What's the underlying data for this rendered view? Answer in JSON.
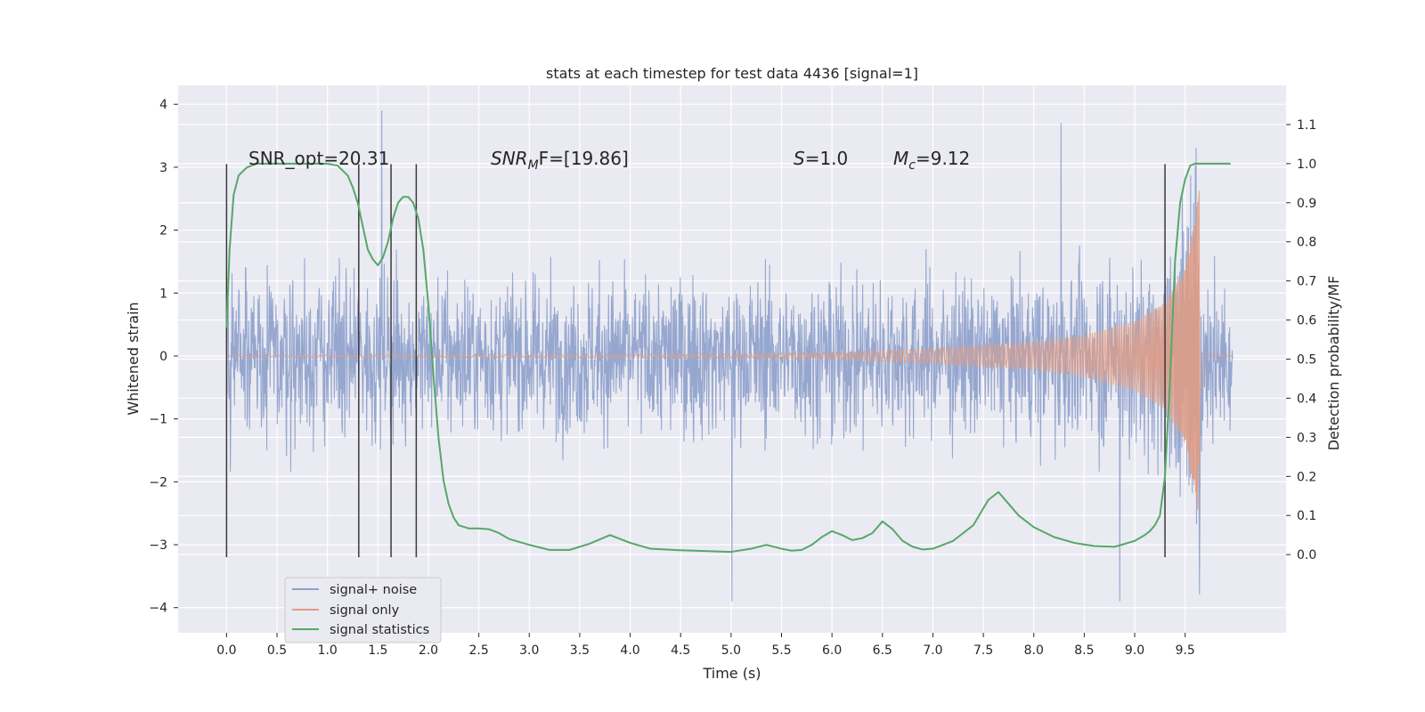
{
  "chart_data": {
    "type": "line",
    "title": "stats at each timestep for test data 4436 [signal=1]",
    "xlabel": "Time (s)",
    "ylabel": "Whitened strain",
    "ylabel_right": "Detection probability/MF",
    "xlim": [
      -0.48,
      10.5
    ],
    "ylim": [
      -4.4,
      4.3
    ],
    "ylim_right": [
      -0.2,
      1.2
    ],
    "x_ticks": [
      "0.0",
      "0.5",
      "1.0",
      "1.5",
      "2.0",
      "2.5",
      "3.0",
      "3.5",
      "4.0",
      "4.5",
      "5.0",
      "5.5",
      "6.0",
      "6.5",
      "7.0",
      "7.5",
      "8.0",
      "8.5",
      "9.0",
      "9.5"
    ],
    "y_ticks": [
      "4",
      "3",
      "2",
      "1",
      "0",
      "−1",
      "−2",
      "−3",
      "−4"
    ],
    "y_ticks_right": [
      "1.1",
      "1.0",
      "0.9",
      "0.8",
      "0.7",
      "0.6",
      "0.5",
      "0.4",
      "0.3",
      "0.2",
      "0.1",
      "0.0"
    ],
    "grid": true,
    "legend_position": "lower-left",
    "colors": {
      "noise": "#8da0cb",
      "signal": "#e29c82",
      "stats": "#55a868",
      "background": "#eaeaf2",
      "vlines": "#3a3a3a"
    },
    "annotations": {
      "snr_opt": "SNR_opt=20.31",
      "snr_mf_sym": "SNR",
      "snr_mf_sub": "M",
      "snr_mf_rest": "F=[19.86]",
      "s_sym": "S",
      "s_val": "=1.0",
      "mc_sym": "M",
      "mc_sub": "c",
      "mc_val": "=9.12"
    },
    "series": [
      {
        "name": "signal+ noise",
        "kind": "noisy-strain",
        "x_range": [
          0.0,
          9.97
        ],
        "typical_amplitude": 1.2,
        "peak_values": [
          3.9,
          3.7,
          -3.9,
          -3.9
        ]
      },
      {
        "name": "signal only",
        "kind": "chirp",
        "x_range": [
          0.0,
          9.68
        ],
        "merger_time": 9.65,
        "envelope": [
          [
            0.0,
            0.01
          ],
          [
            5.0,
            0.03
          ],
          [
            6.0,
            0.06
          ],
          [
            7.0,
            0.12
          ],
          [
            8.0,
            0.22
          ],
          [
            8.5,
            0.33
          ],
          [
            9.0,
            0.55
          ],
          [
            9.3,
            0.85
          ],
          [
            9.5,
            1.4
          ],
          [
            9.6,
            2.2
          ],
          [
            9.65,
            2.75
          ]
        ]
      },
      {
        "name": "signal statistics",
        "kind": "probability",
        "x": [
          0.0,
          0.03,
          0.07,
          0.12,
          0.2,
          0.3,
          0.5,
          0.8,
          1.0,
          1.1,
          1.2,
          1.25,
          1.3,
          1.35,
          1.4,
          1.45,
          1.5,
          1.55,
          1.6,
          1.65,
          1.7,
          1.75,
          1.8,
          1.85,
          1.9,
          1.95,
          2.0,
          2.05,
          2.1,
          2.15,
          2.2,
          2.25,
          2.3,
          2.4,
          2.5,
          2.6,
          2.7,
          2.8,
          3.0,
          3.2,
          3.4,
          3.6,
          3.8,
          4.0,
          4.2,
          4.5,
          5.0,
          5.2,
          5.35,
          5.5,
          5.6,
          5.7,
          5.8,
          5.9,
          6.0,
          6.1,
          6.2,
          6.3,
          6.4,
          6.5,
          6.6,
          6.7,
          6.8,
          6.9,
          7.0,
          7.2,
          7.4,
          7.55,
          7.65,
          7.75,
          7.85,
          8.0,
          8.2,
          8.4,
          8.6,
          8.8,
          9.0,
          9.1,
          9.15,
          9.2,
          9.25,
          9.3,
          9.35,
          9.4,
          9.45,
          9.5,
          9.55,
          9.6,
          9.7,
          9.8,
          9.95
        ],
        "values": [
          0.58,
          0.78,
          0.92,
          0.97,
          0.99,
          1.0,
          1.0,
          1.0,
          1.0,
          0.995,
          0.97,
          0.94,
          0.9,
          0.84,
          0.78,
          0.755,
          0.74,
          0.76,
          0.8,
          0.86,
          0.9,
          0.915,
          0.915,
          0.9,
          0.86,
          0.78,
          0.64,
          0.46,
          0.3,
          0.19,
          0.13,
          0.095,
          0.075,
          0.067,
          0.067,
          0.065,
          0.055,
          0.04,
          0.025,
          0.012,
          0.012,
          0.028,
          0.05,
          0.03,
          0.015,
          0.011,
          0.007,
          0.015,
          0.025,
          0.015,
          0.01,
          0.012,
          0.025,
          0.045,
          0.06,
          0.05,
          0.037,
          0.042,
          0.055,
          0.085,
          0.065,
          0.035,
          0.02,
          0.013,
          0.015,
          0.035,
          0.075,
          0.14,
          0.16,
          0.13,
          0.1,
          0.07,
          0.045,
          0.03,
          0.022,
          0.02,
          0.035,
          0.05,
          0.06,
          0.075,
          0.1,
          0.2,
          0.45,
          0.75,
          0.9,
          0.96,
          0.995,
          1.0,
          1.0,
          1.0,
          1.0
        ]
      }
    ],
    "vertical_lines": [
      0.0,
      1.31,
      1.63,
      1.88,
      9.3
    ],
    "vertical_lines_range": [
      -3.2,
      3.05
    ]
  }
}
